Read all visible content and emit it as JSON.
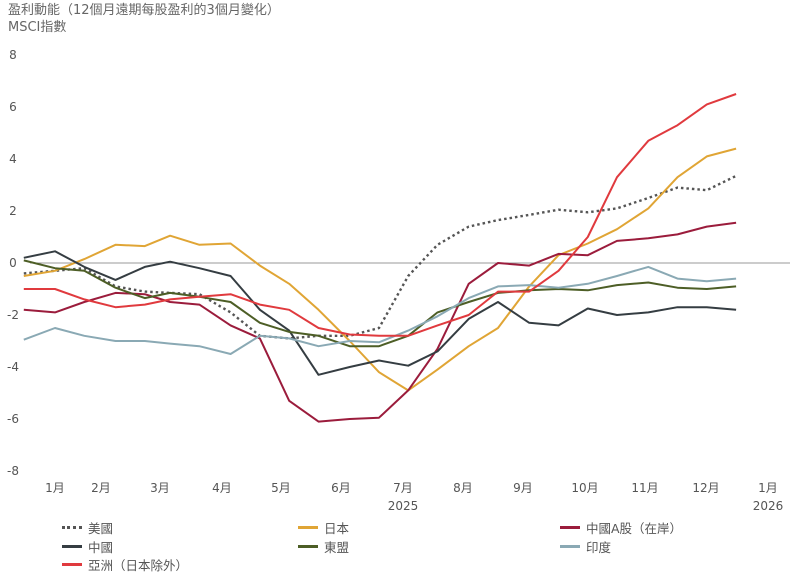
{
  "chart_data": {
    "type": "line",
    "title": "盈利動能（12個月遠期每股盈利的3個月變化）",
    "subtitle": "MSCI指數",
    "xlabel": "",
    "ylabel": "",
    "ylim": [
      -8,
      8
    ],
    "yticks": [
      8,
      6,
      4,
      2,
      0,
      -2,
      -4,
      -6,
      -8
    ],
    "xtick_labels": [
      {
        "month": "1月",
        "year": ""
      },
      {
        "month": "2月",
        "year": ""
      },
      {
        "month": "3月",
        "year": ""
      },
      {
        "month": "4月",
        "year": ""
      },
      {
        "month": "5月",
        "year": ""
      },
      {
        "month": "6月",
        "year": ""
      },
      {
        "month": "7月",
        "year": "2025"
      },
      {
        "month": "8月",
        "year": ""
      },
      {
        "month": "9月",
        "year": ""
      },
      {
        "month": "10月",
        "year": ""
      },
      {
        "month": "11月",
        "year": ""
      },
      {
        "month": "12月",
        "year": ""
      },
      {
        "month": "1月",
        "year": "2026"
      }
    ],
    "grid": false,
    "zero_line": true,
    "legend_position": "bottom",
    "x": [
      "2024-12-16",
      "2025-01-01",
      "2025-01-16",
      "2025-02-01",
      "2025-02-16",
      "2025-03-01",
      "2025-03-16",
      "2025-04-01",
      "2025-04-16",
      "2025-05-01",
      "2025-05-16",
      "2025-06-01",
      "2025-06-16",
      "2025-07-01",
      "2025-07-16",
      "2025-08-01",
      "2025-08-16",
      "2025-09-01",
      "2025-09-16",
      "2025-10-01",
      "2025-10-16",
      "2025-11-01",
      "2025-11-16",
      "2025-12-01",
      "2025-12-16"
    ],
    "series": [
      {
        "name": "美國",
        "color": "#555555",
        "dash": true,
        "values": [
          -0.4,
          -0.3,
          -0.2,
          -0.9,
          -1.1,
          -1.15,
          -1.2,
          -1.9,
          -2.8,
          -2.9,
          -2.8,
          -2.8,
          -2.5,
          -0.5,
          0.7,
          1.4,
          1.65,
          1.85,
          2.05,
          1.95,
          2.1,
          2.5,
          2.9,
          2.8,
          3.35
        ]
      },
      {
        "name": "日本",
        "color": "#e0a535",
        "values": [
          -0.5,
          -0.3,
          0.15,
          0.7,
          0.65,
          1.05,
          0.7,
          0.75,
          -0.1,
          -0.8,
          -1.8,
          -3.0,
          -4.2,
          -4.9,
          -4.1,
          -3.2,
          -2.5,
          -0.9,
          0.3,
          0.75,
          1.3,
          2.1,
          3.3,
          4.1,
          4.4
        ]
      },
      {
        "name": "中國A股（在岸）",
        "color": "#9b1c3c",
        "values": [
          -1.8,
          -1.9,
          -1.5,
          -1.15,
          -1.2,
          -1.5,
          -1.6,
          -2.4,
          -2.9,
          -5.3,
          -6.1,
          -6.0,
          -5.95,
          -4.9,
          -3.3,
          -0.8,
          0.0,
          -0.1,
          0.35,
          0.3,
          0.85,
          0.95,
          1.1,
          1.4,
          1.55
        ]
      },
      {
        "name": "中國",
        "color": "#353d42",
        "values": [
          0.2,
          0.45,
          -0.15,
          -0.65,
          -0.15,
          0.05,
          -0.2,
          -0.5,
          -1.8,
          -2.6,
          -4.3,
          -4.0,
          -3.75,
          -3.95,
          -3.4,
          -2.15,
          -1.5,
          -2.3,
          -2.4,
          -1.75,
          -2.0,
          -1.9,
          -1.7,
          -1.7,
          -1.8
        ]
      },
      {
        "name": "東盟",
        "color": "#4d5e26",
        "values": [
          0.1,
          -0.2,
          -0.3,
          -0.95,
          -1.35,
          -1.15,
          -1.3,
          -1.5,
          -2.3,
          -2.65,
          -2.8,
          -3.2,
          -3.2,
          -2.8,
          -1.9,
          -1.5,
          -1.15,
          -1.05,
          -1.0,
          -1.05,
          -0.85,
          -0.75,
          -0.95,
          -1.0,
          -0.9
        ]
      },
      {
        "name": "印度",
        "color": "#8aa9b4",
        "values": [
          -2.95,
          -2.5,
          -2.8,
          -3.0,
          -3.0,
          -3.1,
          -3.2,
          -3.5,
          -2.8,
          -2.9,
          -3.2,
          -3.0,
          -3.05,
          -2.6,
          -2.05,
          -1.35,
          -0.9,
          -0.85,
          -0.95,
          -0.8,
          -0.5,
          -0.15,
          -0.6,
          -0.7,
          -0.6
        ]
      },
      {
        "name": "亞洲（日本除外）",
        "color": "#e03a3e",
        "values": [
          -1.0,
          -1.0,
          -1.4,
          -1.7,
          -1.6,
          -1.4,
          -1.3,
          -1.2,
          -1.6,
          -1.8,
          -2.5,
          -2.75,
          -2.8,
          -2.8,
          -2.4,
          -2.0,
          -1.1,
          -1.1,
          -0.3,
          1.0,
          3.3,
          4.7,
          5.3,
          6.1,
          6.5
        ]
      }
    ]
  }
}
